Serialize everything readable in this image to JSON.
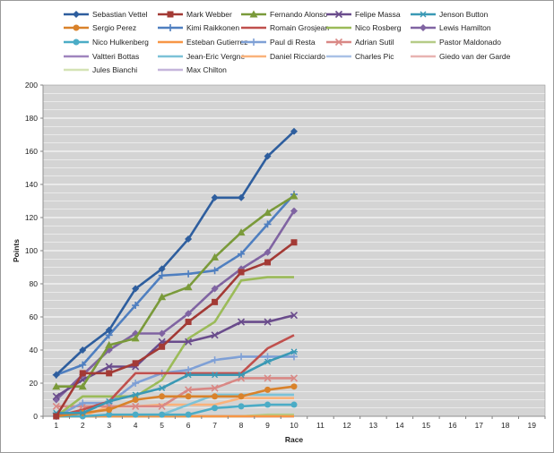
{
  "chart_data": {
    "type": "line",
    "title": "",
    "xlabel": "Race",
    "ylabel": "Points",
    "x": [
      1,
      2,
      3,
      4,
      5,
      6,
      7,
      8,
      9,
      10
    ],
    "x_ticks": [
      "1",
      "2",
      "3",
      "4",
      "5",
      "6",
      "7",
      "8",
      "9",
      "10",
      "11",
      "12",
      "13",
      "14",
      "15",
      "16",
      "17",
      "18",
      "19"
    ],
    "xlim": [
      1,
      19
    ],
    "ylim": [
      0,
      200
    ],
    "y_ticks": [
      0,
      20,
      40,
      60,
      80,
      100,
      120,
      140,
      160,
      180,
      200
    ],
    "grid": true,
    "legend_position": "top",
    "series": [
      {
        "name": "Sebastian Vettel",
        "color": "#2E5E9E",
        "marker": "diamond",
        "values": [
          25,
          40,
          52,
          77,
          89,
          107,
          132,
          132,
          157,
          172
        ]
      },
      {
        "name": "Mark Webber",
        "color": "#A33A35",
        "marker": "square",
        "values": [
          0,
          26,
          26,
          32,
          42,
          57,
          69,
          87,
          93,
          105
        ]
      },
      {
        "name": "Fernando Alonso",
        "color": "#7A9A3A",
        "marker": "triangle",
        "values": [
          18,
          18,
          43,
          47,
          72,
          78,
          96,
          111,
          123,
          133
        ]
      },
      {
        "name": "Felipe Massa",
        "color": "#6A4C8C",
        "marker": "x",
        "values": [
          12,
          22,
          30,
          30,
          45,
          45,
          49,
          57,
          57,
          61
        ]
      },
      {
        "name": "Jenson Button",
        "color": "#3A99B5",
        "marker": "star",
        "values": [
          2,
          2,
          9,
          13,
          17,
          25,
          25,
          25,
          33,
          39
        ]
      },
      {
        "name": "Sergio Perez",
        "color": "#D9822B",
        "marker": "circle",
        "values": [
          0,
          2,
          4,
          10,
          12,
          12,
          12,
          12,
          16,
          18
        ]
      },
      {
        "name": "Kimi Raikkonen",
        "color": "#4F7FC0",
        "marker": "plus",
        "values": [
          25,
          31,
          49,
          67,
          85,
          86,
          88,
          98,
          116,
          134
        ]
      },
      {
        "name": "Romain Grosjean",
        "color": "#C0504D",
        "marker": "none",
        "values": [
          0,
          4,
          9,
          26,
          26,
          26,
          26,
          26,
          41,
          49
        ]
      },
      {
        "name": "Nico Rosberg",
        "color": "#9BBB59",
        "marker": "none",
        "values": [
          0,
          12,
          12,
          12,
          22,
          47,
          57,
          82,
          84,
          84
        ]
      },
      {
        "name": "Lewis Hamilton",
        "color": "#8064A2",
        "marker": "diamond",
        "values": [
          10,
          25,
          40,
          50,
          50,
          62,
          77,
          89,
          99,
          124
        ]
      },
      {
        "name": "Nico Hulkenberg",
        "color": "#4BACC6",
        "marker": "circle",
        "values": [
          0,
          0,
          1,
          1,
          1,
          1,
          5,
          6,
          7,
          7
        ]
      },
      {
        "name": "Esteban Gutierrez",
        "color": "#F79646",
        "marker": "none",
        "values": [
          0,
          0,
          0,
          0,
          0,
          0,
          0,
          0,
          0,
          0
        ]
      },
      {
        "name": "Paul di Resta",
        "color": "#7FA0D6",
        "marker": "plus",
        "values": [
          0,
          8,
          8,
          20,
          26,
          28,
          34,
          36,
          36,
          36
        ]
      },
      {
        "name": "Adrian Sutil",
        "color": "#D98885",
        "marker": "x",
        "values": [
          6,
          6,
          6,
          6,
          6,
          16,
          17,
          23,
          23,
          23
        ]
      },
      {
        "name": "Pastor Maldonado",
        "color": "#B5CC87",
        "marker": "none",
        "values": [
          0,
          0,
          0,
          0,
          0,
          0,
          0,
          0,
          1,
          1
        ]
      },
      {
        "name": "Valtteri Bottas",
        "color": "#9F84BE",
        "marker": "none",
        "values": [
          0,
          0,
          0,
          0,
          0,
          0,
          0,
          0,
          0,
          0
        ]
      },
      {
        "name": "Jean-Eric Vergne",
        "color": "#7CC2D7",
        "marker": "none",
        "values": [
          0,
          0,
          0,
          1,
          1,
          7,
          13,
          13,
          13,
          13
        ]
      },
      {
        "name": "Daniel Ricciardo",
        "color": "#FAB27A",
        "marker": "none",
        "values": [
          0,
          0,
          6,
          6,
          7,
          7,
          7,
          11,
          11,
          11
        ]
      },
      {
        "name": "Charles Pic",
        "color": "#A9C1E6",
        "marker": "none",
        "values": [
          0,
          0,
          0,
          0,
          0,
          0,
          0,
          0,
          0,
          0
        ]
      },
      {
        "name": "Giedo van der Garde",
        "color": "#E8B3B1",
        "marker": "none",
        "values": [
          0,
          0,
          0,
          0,
          0,
          0,
          0,
          0,
          0,
          0
        ]
      },
      {
        "name": "Jules Bianchi",
        "color": "#D4E3B5",
        "marker": "none",
        "values": [
          0,
          0,
          0,
          0,
          0,
          0,
          0,
          0,
          0,
          0
        ]
      },
      {
        "name": "Max Chilton",
        "color": "#C5B5DB",
        "marker": "none",
        "values": [
          0,
          0,
          0,
          0,
          0,
          0,
          0,
          0,
          0,
          0
        ]
      }
    ]
  }
}
